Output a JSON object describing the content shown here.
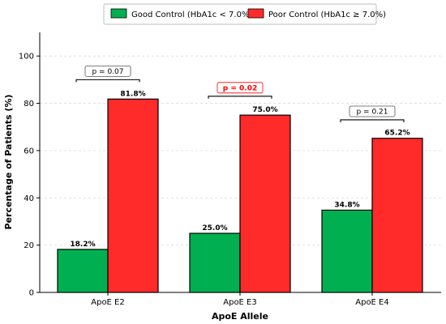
{
  "chart_data": {
    "type": "bar",
    "title": "",
    "xlabel": "ApoE Allele",
    "ylabel": "Percentage of Patients (%)",
    "ylim": [
      0,
      110
    ],
    "yticks": [
      0,
      20,
      40,
      60,
      80,
      100
    ],
    "categories": [
      "ApoE E2",
      "ApoE E3",
      "ApoE E4"
    ],
    "grid": "horizontal dashed",
    "legend_position": "top-center",
    "series": [
      {
        "name": "Good Control (HbA1c < 7.0%)",
        "color": "#00b050",
        "values": [
          18.2,
          25.0,
          34.8
        ],
        "labels": [
          "18.2%",
          "25.0%",
          "34.8%"
        ]
      },
      {
        "name": "Poor Control (HbA1c ≥ 7.0%)",
        "color": "#ff2a2a",
        "values": [
          81.8,
          75.0,
          65.2
        ],
        "labels": [
          "81.8%",
          "75.0%",
          "65.2%"
        ]
      }
    ],
    "annotations": [
      {
        "text": "p = 0.07",
        "category": "ApoE E2",
        "y": 90,
        "significant": false
      },
      {
        "text": "p = 0.02",
        "category": "ApoE E3",
        "y": 83,
        "significant": true
      },
      {
        "text": "p = 0.21",
        "category": "ApoE E4",
        "y": 73,
        "significant": false
      }
    ],
    "significant_color": "#ff0000"
  }
}
